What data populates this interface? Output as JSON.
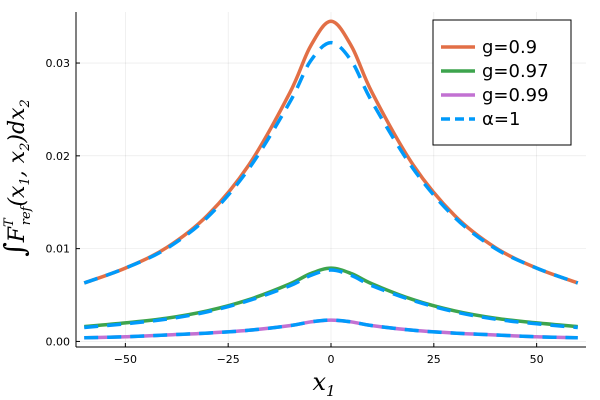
{
  "chart_data": {
    "type": "line",
    "xlabel": "x1",
    "ylabel": "∫F^T_ref(x1, x2) dx2",
    "xlim": [
      -62,
      62
    ],
    "ylim": [
      -0.0006,
      0.0355
    ],
    "xticks": [
      -50,
      -25,
      0,
      25,
      50
    ],
    "xtick_labels": [
      "−50",
      "−25",
      "0",
      "25",
      "50"
    ],
    "yticks": [
      0.0,
      0.01,
      0.02,
      0.03
    ],
    "ytick_labels": [
      "0.00",
      "0.01",
      "0.02",
      "0.03"
    ],
    "grid": true,
    "legend_position": "top-right",
    "x": [
      -60,
      -50,
      -40,
      -30,
      -20,
      -10,
      -5,
      0,
      5,
      10,
      20,
      30,
      40,
      50,
      60
    ],
    "series": [
      {
        "name": "g=0.9",
        "color": "#E26F46",
        "style": "solid",
        "values": [
          0.0063,
          0.0079,
          0.0101,
          0.0136,
          0.019,
          0.0268,
          0.0318,
          0.0345,
          0.0318,
          0.0268,
          0.019,
          0.0136,
          0.0101,
          0.0079,
          0.0063
        ]
      },
      {
        "name": "g=0.97",
        "color": "#3DA44D",
        "style": "solid",
        "values": [
          0.0016,
          0.002,
          0.0025,
          0.0033,
          0.0045,
          0.0062,
          0.0073,
          0.0079,
          0.0073,
          0.0062,
          0.0045,
          0.0033,
          0.0025,
          0.002,
          0.0016
        ]
      },
      {
        "name": "g=0.99",
        "color": "#C271D2",
        "style": "solid",
        "values": [
          0.0004,
          0.0005,
          0.0007,
          0.0009,
          0.0012,
          0.0017,
          0.0021,
          0.0023,
          0.0021,
          0.0017,
          0.0012,
          0.0009,
          0.0007,
          0.0005,
          0.0004
        ]
      },
      {
        "name": "α=1",
        "color": "#009AFA",
        "style": "dashed",
        "segments": [
          [
            0.0063,
            0.0079,
            0.01,
            0.0134,
            0.0186,
            0.0258,
            0.0302,
            0.0322,
            0.0302,
            0.0258,
            0.0186,
            0.0134,
            0.01,
            0.0079,
            0.0063
          ],
          [
            0.0015,
            0.0019,
            0.0024,
            0.0032,
            0.0044,
            0.006,
            0.0071,
            0.0077,
            0.0071,
            0.006,
            0.0044,
            0.0032,
            0.0024,
            0.0019,
            0.0015
          ],
          [
            0.0004,
            0.0005,
            0.0007,
            0.0009,
            0.0012,
            0.0017,
            0.0021,
            0.0023,
            0.0021,
            0.0017,
            0.0012,
            0.0009,
            0.0007,
            0.0005,
            0.0004
          ]
        ]
      }
    ]
  }
}
